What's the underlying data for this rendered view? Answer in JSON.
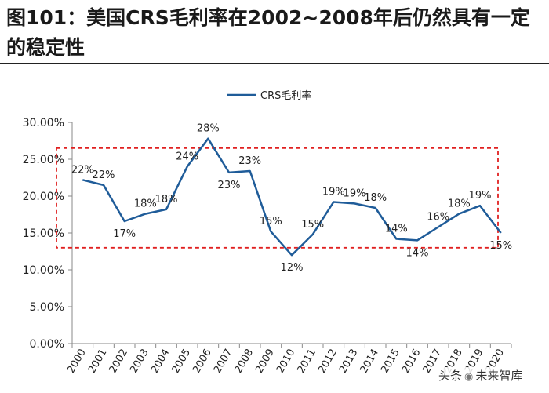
{
  "title": "图101：美国CRS毛利率在2002~2008年后仍然具有一定的稳定性",
  "watermark": {
    "prefix": "头条",
    "icon": "wechat-icon",
    "brand": "未来智库"
  },
  "chart_data": {
    "type": "line",
    "title": "",
    "xlabel": "",
    "ylabel": "",
    "legend": {
      "label": "CRS毛利率",
      "position": "top-center"
    },
    "categories": [
      "2000",
      "2001",
      "2002",
      "2003",
      "2004",
      "2005",
      "2006",
      "2007",
      "2008",
      "2009",
      "2010",
      "2011",
      "2012",
      "2013",
      "2014",
      "2015",
      "2016",
      "2017",
      "2018",
      "2019",
      "2020"
    ],
    "series": [
      {
        "name": "CRS毛利率",
        "color": "#1f5c99",
        "values": [
          0.222,
          0.215,
          0.166,
          0.176,
          0.182,
          0.24,
          0.278,
          0.232,
          0.234,
          0.152,
          0.12,
          0.148,
          0.192,
          0.19,
          0.184,
          0.142,
          0.14,
          0.158,
          0.176,
          0.187,
          0.15
        ],
        "labels": [
          "22%",
          "22%",
          "17%",
          "18%",
          "18%",
          "24%",
          "28%",
          "23%",
          "23%",
          "15%",
          "12%",
          "15%",
          "19%",
          "19%",
          "18%",
          "14%",
          "14%",
          "16%",
          "18%",
          "19%",
          "15%"
        ]
      }
    ],
    "yticks": [
      "0.00%",
      "5.00%",
      "10.00%",
      "15.00%",
      "20.00%",
      "25.00%",
      "30.00%"
    ],
    "ylim": [
      0,
      0.3
    ],
    "highlight_box": {
      "y_from": 0.13,
      "y_to": 0.265,
      "color": "#e02020",
      "style": "dashed"
    },
    "grid": false
  }
}
